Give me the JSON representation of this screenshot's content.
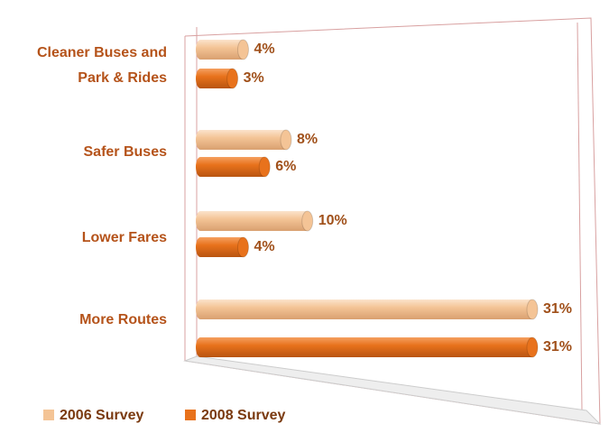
{
  "chart_data": {
    "type": "bar",
    "orientation": "horizontal",
    "categories": [
      "Cleaner Buses and Park & Rides",
      "Safer Buses",
      "Lower Fares",
      "More Routes"
    ],
    "series": [
      {
        "name": "2006 Survey",
        "color": "#f4c496",
        "values": [
          4,
          8,
          10,
          31
        ],
        "value_labels": [
          "4%",
          "8%",
          "10%",
          "31%"
        ]
      },
      {
        "name": "2008 Survey",
        "color": "#e8721c",
        "values": [
          3,
          6,
          4,
          31
        ],
        "value_labels": [
          "3%",
          "6%",
          "4%",
          "31%"
        ]
      }
    ],
    "legend": "bottom-left"
  }
}
